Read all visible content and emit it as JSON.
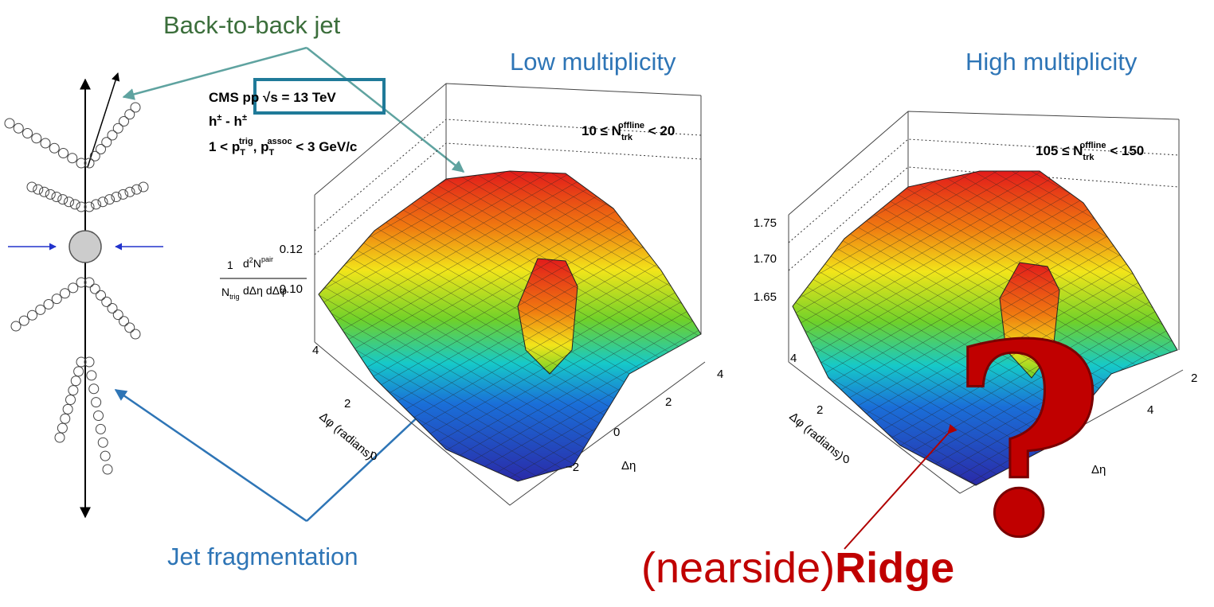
{
  "annotations": {
    "back_to_back": "Back-to-back jet",
    "low_mult": "Low multiplicity",
    "high_mult": "High multiplicity",
    "jet_frag": "Jet fragmentation",
    "ridge_prefix": "(nearside)",
    "ridge": "Ridge"
  },
  "cms_label": {
    "experiment": "CMS",
    "system": "pp",
    "energy": "√s = 13 TeV",
    "pair": {
      "base1": "h",
      "sup1": "±",
      "sep": " - ",
      "base2": "h",
      "sup2": "±"
    },
    "pt": {
      "pre": "1 < p",
      "sub1": "T",
      "sup1": "trig",
      "mid": ", p",
      "sub2": "T",
      "sup2": "assoc",
      "post": " < 3 GeV/c"
    }
  },
  "panels": [
    {
      "mult": {
        "pre": "10 ≤ N",
        "sub": "trk",
        "sup": "offline",
        "post": " < 20"
      },
      "zticks": [
        "0.12",
        "0.10"
      ],
      "dphi_ticks": [
        "4",
        "2",
        "0"
      ],
      "deta_ticks": [
        "−2",
        "0",
        "2",
        "4"
      ],
      "zlabel": {
        "one": "1",
        "trig": "N",
        "trig_sub": "trig",
        "num": "d",
        "num_sup": "2",
        "num_n": "N",
        "num_nsup": "pair",
        "den": "dΔη dΔφ"
      },
      "xlabel": "Δφ (radians)",
      "ylabel": "Δη"
    },
    {
      "mult": {
        "pre": "105 ≤ N",
        "sub": "trk",
        "sup": "offline",
        "post": " < 150"
      },
      "zticks": [
        "1.75",
        "1.70",
        "1.65"
      ],
      "dphi_ticks": [
        "4",
        "2",
        "0"
      ],
      "deta_ticks": [
        "4",
        "2"
      ],
      "xlabel": "Δφ (radians)",
      "ylabel": "Δη"
    }
  ]
}
